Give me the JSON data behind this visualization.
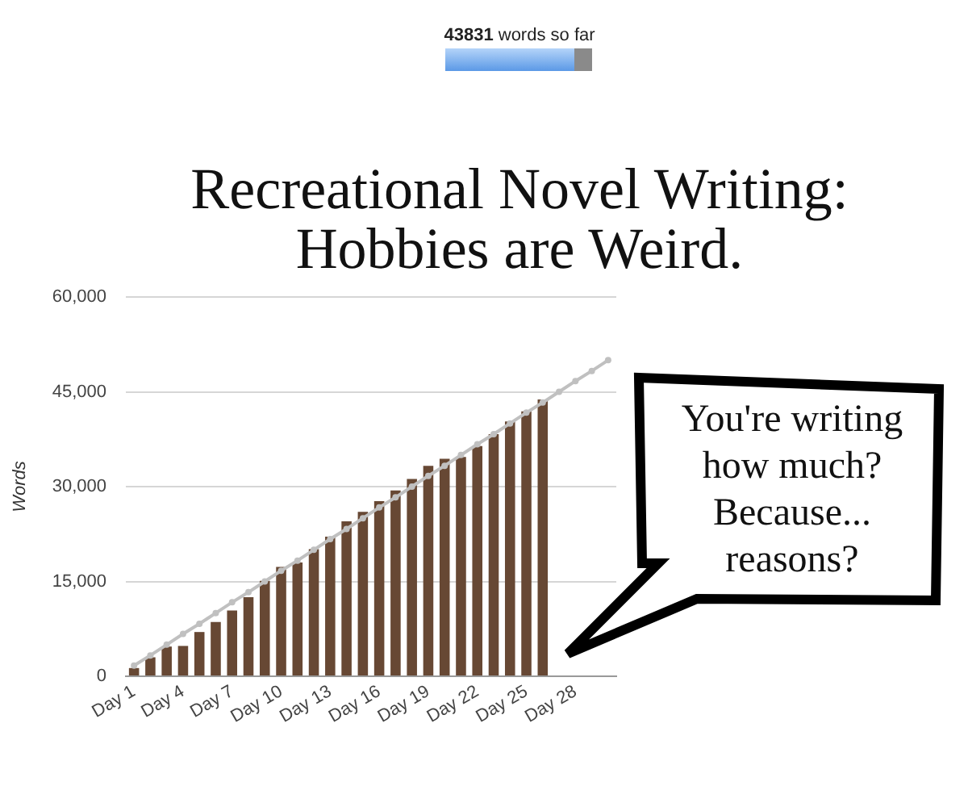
{
  "chart_data": {
    "type": "bar",
    "title": "Recreational Novel Writing:\nHobbies are Weird.",
    "ylabel": "Words",
    "categories": [
      "Day 1",
      null,
      null,
      "Day 4",
      null,
      null,
      "Day 7",
      null,
      null,
      "Day 10",
      null,
      null,
      "Day 13",
      null,
      null,
      "Day 16",
      null,
      null,
      "Day 19",
      null,
      null,
      "Day 22",
      null,
      null,
      "Day 25",
      null,
      null,
      "Day 28",
      null,
      null
    ],
    "series": [
      {
        "color": "#674834",
        "values": [
          1300,
          3000,
          4700,
          4800,
          7000,
          8600,
          10400,
          12500,
          15100,
          17300,
          18000,
          20100,
          22100,
          24500,
          26000,
          27700,
          29400,
          31200,
          33300,
          34400,
          34700,
          36400,
          38300,
          40300,
          41900,
          43800,
          null,
          null,
          null,
          null
        ]
      },
      {
        "type": "line",
        "color": "#c0c0c0",
        "values": [
          1700,
          3300,
          5000,
          6700,
          8300,
          10000,
          11700,
          13300,
          15000,
          16700,
          18300,
          20000,
          21700,
          23300,
          25000,
          26700,
          28300,
          30000,
          31700,
          33300,
          35000,
          36700,
          38300,
          40000,
          41700,
          43300,
          45000,
          46700,
          48300,
          50000
        ]
      }
    ],
    "ylim": [
      0,
      60000
    ],
    "yticks": [
      0,
      {
        "value": 15000,
        "label": "15,000"
      },
      {
        "value": 30000,
        "label": "30,000"
      },
      {
        "value": 45000,
        "label": "45,000"
      },
      {
        "value": 60000,
        "label": "60,000"
      }
    ],
    "grid": "y",
    "marker": "circle",
    "annotations": [
      "43831 words so far",
      "You're writing\nhow much?\nBecause...\nreasons?"
    ]
  }
}
